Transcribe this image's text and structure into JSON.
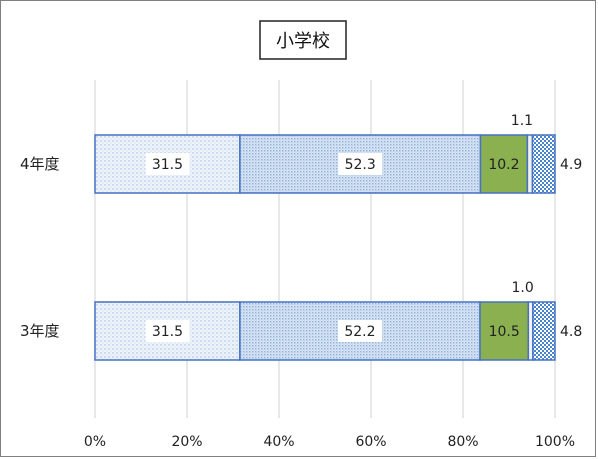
{
  "chart_data": {
    "type": "bar",
    "stacked": "percent",
    "orientation": "horizontal",
    "title": "小学校",
    "categories": [
      "4年度",
      "3年度"
    ],
    "series": [
      {
        "values": [
          31.5,
          31.5
        ],
        "color": "#e3ecf7",
        "pattern": "dots-sparse"
      },
      {
        "values": [
          52.3,
          52.2
        ],
        "color": "#d3e1f2",
        "pattern": "dots-dense"
      },
      {
        "values": [
          10.2,
          10.5
        ],
        "color": "#8bb050",
        "pattern": "solid"
      },
      {
        "values": [
          1.1,
          1.0
        ],
        "color": "#f2f2f2",
        "pattern": "solid"
      },
      {
        "values": [
          4.9,
          4.8
        ],
        "color": "#7ba7dd",
        "pattern": "checker"
      }
    ],
    "value_labels": [
      [
        "31.5",
        "52.3",
        "10.2",
        "1.1",
        "4.9"
      ],
      [
        "31.5",
        "52.2",
        "10.5",
        "1.0",
        "4.8"
      ]
    ],
    "xlim": [
      0,
      100
    ],
    "xticks": [
      "0%",
      "20%",
      "40%",
      "60%",
      "80%",
      "100%"
    ],
    "grid": "vertical",
    "legend": "none",
    "xlabel": "",
    "ylabel": ""
  }
}
